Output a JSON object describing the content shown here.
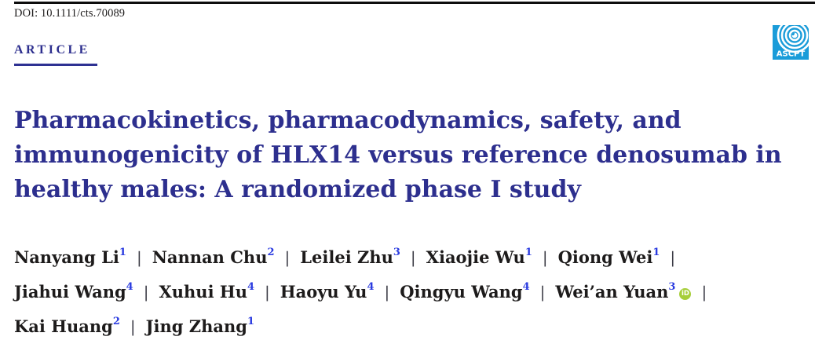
{
  "page": {
    "doi": "DOI: 10.1111/cts.70089",
    "article_label": "ARTICLE"
  },
  "logo": {
    "text": "ASCPT",
    "background_color": "#1a9cd9",
    "text_color": "#ffffff"
  },
  "title": {
    "lines": [
      "Pharmacokinetics, pharmacodynamics, safety, and",
      "immunogenicity of HLX14 versus reference denosumab in",
      "healthy males: A randomized phase I study"
    ]
  },
  "authors": {
    "separator": "|",
    "lines": [
      [
        {
          "name": "Nanyang Li",
          "sup": "1"
        },
        {
          "name": "Nannan Chu",
          "sup": "2"
        },
        {
          "name": "Leilei Zhu",
          "sup": "3"
        },
        {
          "name": "Xiaojie Wu",
          "sup": "1"
        },
        {
          "name": "Qiong Wei",
          "sup": "1"
        }
      ],
      [
        {
          "name": "Jiahui Wang",
          "sup": "4"
        },
        {
          "name": "Xuhui Hu",
          "sup": "4"
        },
        {
          "name": "Haoyu Yu",
          "sup": "4"
        },
        {
          "name": "Qingyu Wang",
          "sup": "4"
        },
        {
          "name": "Wei’an Yuan",
          "sup": "3",
          "orcid": true
        }
      ],
      [
        {
          "name": "Kai Huang",
          "sup": "2"
        },
        {
          "name": "Jing Zhang",
          "sup": "1"
        }
      ]
    ],
    "trailing_separator_lines": [
      0,
      1
    ]
  },
  "icons": {
    "orcid_text": "iD"
  },
  "colors": {
    "title_navy": "#2d2f8e",
    "superscript_blue": "#2a3be0",
    "author_black": "#1d1b1b",
    "separator_gray": "#3b3b45",
    "top_rule_black": "#0d0d0d",
    "logo_blue": "#1a9cd9",
    "orcid_green": "#a6ce39",
    "article_underline": "#2e3192"
  }
}
